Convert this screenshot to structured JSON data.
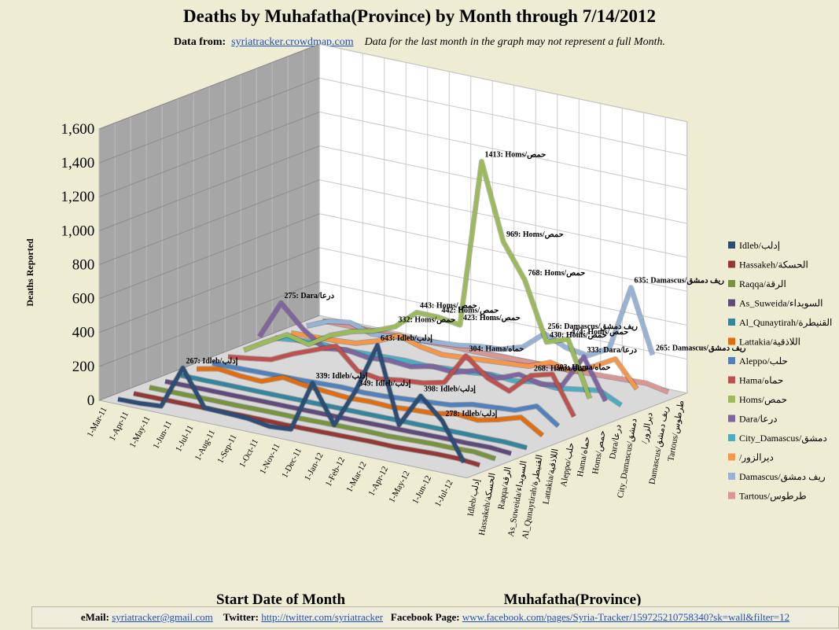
{
  "header": {
    "title": "Deaths by Muhafatha(Province) by Month through 7/14/2012",
    "source_label": "Data from:",
    "source_link": "syriatracker.crowdmap.com",
    "note": "Data for the last month  in the graph may not represent a full Month."
  },
  "footer": {
    "email_label": "eMail:",
    "email": "syriatracker@gmail.com",
    "twitter_label": "Twitter:",
    "twitter": "http://twitter.com/syriatracker",
    "facebook_label": "Facebook  Page:",
    "facebook": "www.facebook.com/pages/Syria-Tracker/159725210758340?sk=wall&filter=12"
  },
  "chart_data": {
    "type": "line3d",
    "y_label": "Deaths Reported",
    "x_label": "Start Date of Month",
    "z_label": "Muhafatha(Province)",
    "grid": true,
    "ylim": [
      0,
      1600
    ],
    "yticks": [
      0,
      200,
      400,
      600,
      800,
      {
        "value": 1000,
        "label": "1,000"
      },
      {
        "value": 1200,
        "label": "1,200"
      },
      {
        "value": 1400,
        "label": "1,400"
      },
      {
        "value": 1600,
        "label": "1,600"
      }
    ],
    "categories": [
      "1-Mar-11",
      "1-Apr-11",
      "1-May-11",
      "1-Jun-11",
      "1-Jul-11",
      "1-Aug-11",
      "1-Sep-11",
      "1-Oct-11",
      "1-Nov-11",
      "1-Dec-11",
      "1-Jan-12",
      "1-Feb-12",
      "1-Mar-12",
      "1-Apr-12",
      "1-May-12",
      "1-Jun-12",
      "1-Jul-12"
    ],
    "series": [
      {
        "name": "Idleb/إدلب",
        "color": "#2c4d75",
        "values": [
          2,
          5,
          15,
          267,
          60,
          55,
          50,
          30,
          40,
          339,
          120,
          349,
          643,
          200,
          398,
          278,
          60
        ],
        "value_labels": [
          null,
          null,
          null,
          "267: Idleb/إدلب",
          null,
          null,
          null,
          null,
          null,
          "339: Idleb/إدلب",
          null,
          "349: Idleb/إدلب",
          "643: Idleb/إدلب",
          null,
          "398: Idleb/إدلب",
          "278: Idleb/إدلب",
          null
        ]
      },
      {
        "name": "Hassakeh/الحسكة",
        "color": "#953735",
        "values": [
          0,
          1,
          2,
          3,
          3,
          5,
          5,
          4,
          6,
          8,
          10,
          12,
          10,
          15,
          20,
          20,
          8
        ]
      },
      {
        "name": "Raqqa/الرقة",
        "color": "#77933c",
        "values": [
          0,
          1,
          2,
          3,
          3,
          5,
          6,
          5,
          8,
          10,
          12,
          10,
          15,
          20,
          20,
          25,
          10
        ]
      },
      {
        "name": "As_Suweida/السويداء",
        "color": "#604a7b",
        "values": [
          0,
          1,
          2,
          2,
          3,
          4,
          4,
          5,
          5,
          6,
          8,
          8,
          10,
          12,
          12,
          15,
          5
        ]
      },
      {
        "name": "Al_Qunaytirah/القنيطرة",
        "color": "#31859c",
        "values": [
          0,
          0,
          1,
          1,
          1,
          2,
          2,
          3,
          3,
          4,
          5,
          5,
          6,
          8,
          8,
          10,
          3
        ]
      },
      {
        "name": "Lattakia/اللاذقية",
        "color": "#e46c0a",
        "values": [
          2,
          30,
          15,
          10,
          60,
          40,
          30,
          20,
          25,
          20,
          30,
          35,
          60,
          50,
          80,
          120,
          40
        ]
      },
      {
        "name": "Aleppo/حلب",
        "color": "#4f81bd",
        "values": [
          0,
          2,
          5,
          8,
          10,
          15,
          20,
          15,
          20,
          30,
          40,
          50,
          80,
          90,
          100,
          150,
          60
        ]
      },
      {
        "name": "Hama/حماه",
        "color": "#c0504d",
        "values": [
          2,
          20,
          40,
          100,
          150,
          200,
          80,
          60,
          80,
          90,
          120,
          304,
          200,
          150,
          268,
          303,
          80
        ],
        "value_labels": [
          null,
          null,
          null,
          null,
          null,
          null,
          null,
          null,
          null,
          null,
          null,
          "304: Hama/حماه",
          null,
          null,
          "268: Hama/حماه",
          "303: Hama/حماه",
          null
        ]
      },
      {
        "name": "Homs/حمص",
        "color": "#9bbb59",
        "values": [
          5,
          80,
          150,
          120,
          200,
          250,
          280,
          332,
          443,
          442,
          423,
          1413,
          969,
          768,
          430,
          474,
          150
        ],
        "value_labels": [
          null,
          null,
          null,
          null,
          null,
          null,
          null,
          "332: Homs/حمص",
          "443: Homs/حمص",
          "442: Homs/حمص",
          "423: Homs/حمص",
          "1413: Homs/حمص",
          "969: Homs/حمص",
          "768: Homs/حمص",
          "430: Homs/حمص",
          "474: Homs/حمص",
          null
        ]
      },
      {
        "name": "Dara/درعا",
        "color": "#8064a2",
        "values": [
          50,
          275,
          150,
          60,
          80,
          60,
          70,
          60,
          90,
          80,
          120,
          100,
          150,
          120,
          140,
          333,
          100
        ],
        "value_labels": [
          null,
          "275: Dara/درعا",
          null,
          null,
          null,
          null,
          null,
          null,
          null,
          null,
          null,
          null,
          null,
          null,
          null,
          "333: Dara/درعا",
          null
        ]
      },
      {
        "name": "City_Damascus/دمشق",
        "color": "#4bacc6",
        "values": [
          5,
          20,
          30,
          20,
          25,
          30,
          35,
          30,
          40,
          45,
          60,
          50,
          70,
          60,
          80,
          100,
          40
        ]
      },
      {
        "name": "/ديرالزور",
        "color": "#f79646",
        "values": [
          0,
          5,
          10,
          20,
          60,
          120,
          80,
          60,
          70,
          80,
          90,
          100,
          150,
          120,
          180,
          250,
          100
        ]
      },
      {
        "name": "Damascus/ريف دمشق",
        "color": "#95b3d7",
        "values": [
          5,
          60,
          80,
          40,
          50,
          60,
          70,
          80,
          100,
          110,
          150,
          256,
          200,
          180,
          250,
          635,
          265
        ],
        "value_labels": [
          null,
          null,
          null,
          null,
          null,
          null,
          null,
          null,
          null,
          null,
          null,
          "256: Damascus/ريف دمشق",
          null,
          null,
          null,
          "635: Damascus/ريف دمشق",
          "265: Damascus/ريف دمشق"
        ]
      },
      {
        "name": "Tartous/طرطوس",
        "color": "#d99694",
        "values": [
          0,
          2,
          3,
          5,
          5,
          8,
          10,
          8,
          10,
          12,
          15,
          15,
          20,
          25,
          30,
          35,
          10
        ]
      }
    ]
  }
}
